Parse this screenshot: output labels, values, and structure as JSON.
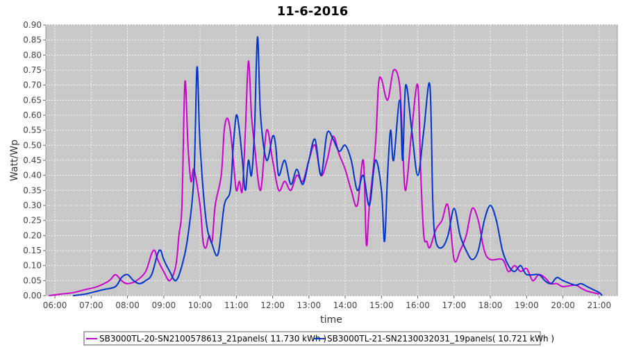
{
  "chart_data": {
    "type": "line",
    "title": "11-6-2016",
    "xlabel": "time",
    "ylabel": "Watt/Wp",
    "xlim": [
      "05:45",
      "21:30"
    ],
    "ylim": [
      0,
      0.9
    ],
    "x_ticks": [
      "06:00",
      "07:00",
      "08:00",
      "09:00",
      "10:00",
      "11:00",
      "12:00",
      "13:00",
      "14:00",
      "15:00",
      "16:00",
      "17:00",
      "18:00",
      "19:00",
      "20:00",
      "21:00"
    ],
    "y_ticks": [
      "0.00",
      "0.05",
      "0.10",
      "0.15",
      "0.20",
      "0.25",
      "0.30",
      "0.35",
      "0.40",
      "0.45",
      "0.50",
      "0.55",
      "0.60",
      "0.65",
      "0.70",
      "0.75",
      "0.80",
      "0.85",
      "0.90"
    ],
    "grid": true,
    "legend_position": "bottom",
    "series": [
      {
        "name": "SB3000TL-20-SN2100578613_21panels( 11.730 kWh )",
        "color": "#cc00cc",
        "points": [
          [
            "05:50",
            0.0
          ],
          [
            "06:10",
            0.005
          ],
          [
            "06:30",
            0.01
          ],
          [
            "06:50",
            0.02
          ],
          [
            "07:10",
            0.03
          ],
          [
            "07:30",
            0.05
          ],
          [
            "07:40",
            0.07
          ],
          [
            "07:50",
            0.05
          ],
          [
            "08:00",
            0.04
          ],
          [
            "08:15",
            0.05
          ],
          [
            "08:30",
            0.08
          ],
          [
            "08:40",
            0.14
          ],
          [
            "08:45",
            0.15
          ],
          [
            "08:50",
            0.12
          ],
          [
            "09:00",
            0.08
          ],
          [
            "09:10",
            0.05
          ],
          [
            "09:20",
            0.1
          ],
          [
            "09:25",
            0.2
          ],
          [
            "09:30",
            0.3
          ],
          [
            "09:35",
            0.71
          ],
          [
            "09:40",
            0.5
          ],
          [
            "09:45",
            0.38
          ],
          [
            "09:50",
            0.42
          ],
          [
            "10:00",
            0.3
          ],
          [
            "10:05",
            0.18
          ],
          [
            "10:10",
            0.16
          ],
          [
            "10:15",
            0.2
          ],
          [
            "10:20",
            0.18
          ],
          [
            "10:25",
            0.3
          ],
          [
            "10:35",
            0.4
          ],
          [
            "10:40",
            0.55
          ],
          [
            "10:45",
            0.59
          ],
          [
            "10:50",
            0.55
          ],
          [
            "10:55",
            0.45
          ],
          [
            "11:00",
            0.35
          ],
          [
            "11:05",
            0.38
          ],
          [
            "11:10",
            0.35
          ],
          [
            "11:15",
            0.55
          ],
          [
            "11:20",
            0.78
          ],
          [
            "11:25",
            0.6
          ],
          [
            "11:30",
            0.5
          ],
          [
            "11:40",
            0.35
          ],
          [
            "11:50",
            0.55
          ],
          [
            "12:00",
            0.45
          ],
          [
            "12:10",
            0.35
          ],
          [
            "12:20",
            0.38
          ],
          [
            "12:30",
            0.35
          ],
          [
            "12:40",
            0.4
          ],
          [
            "12:50",
            0.38
          ],
          [
            "13:00",
            0.45
          ],
          [
            "13:10",
            0.5
          ],
          [
            "13:20",
            0.4
          ],
          [
            "13:30",
            0.45
          ],
          [
            "13:40",
            0.53
          ],
          [
            "13:50",
            0.47
          ],
          [
            "14:00",
            0.42
          ],
          [
            "14:10",
            0.35
          ],
          [
            "14:20",
            0.3
          ],
          [
            "14:30",
            0.45
          ],
          [
            "14:35",
            0.17
          ],
          [
            "14:40",
            0.3
          ],
          [
            "14:50",
            0.5
          ],
          [
            "14:55",
            0.7
          ],
          [
            "15:00",
            0.72
          ],
          [
            "15:10",
            0.65
          ],
          [
            "15:20",
            0.75
          ],
          [
            "15:30",
            0.7
          ],
          [
            "15:35",
            0.5
          ],
          [
            "15:40",
            0.35
          ],
          [
            "15:50",
            0.55
          ],
          [
            "16:00",
            0.7
          ],
          [
            "16:05",
            0.4
          ],
          [
            "16:10",
            0.2
          ],
          [
            "16:15",
            0.18
          ],
          [
            "16:20",
            0.16
          ],
          [
            "16:30",
            0.22
          ],
          [
            "16:40",
            0.25
          ],
          [
            "16:50",
            0.3
          ],
          [
            "17:00",
            0.12
          ],
          [
            "17:10",
            0.15
          ],
          [
            "17:20",
            0.2
          ],
          [
            "17:30",
            0.29
          ],
          [
            "17:40",
            0.25
          ],
          [
            "17:50",
            0.15
          ],
          [
            "18:00",
            0.12
          ],
          [
            "18:20",
            0.12
          ],
          [
            "18:30",
            0.08
          ],
          [
            "18:40",
            0.1
          ],
          [
            "18:50",
            0.08
          ],
          [
            "19:00",
            0.09
          ],
          [
            "19:10",
            0.05
          ],
          [
            "19:20",
            0.07
          ],
          [
            "19:30",
            0.06
          ],
          [
            "19:40",
            0.04
          ],
          [
            "19:50",
            0.04
          ],
          [
            "20:00",
            0.03
          ],
          [
            "20:20",
            0.035
          ],
          [
            "20:30",
            0.025
          ],
          [
            "20:40",
            0.015
          ],
          [
            "20:50",
            0.01
          ],
          [
            "21:00",
            0.005
          ]
        ]
      },
      {
        "name": "SB3000TL-21-SN2130032031_19panels( 10.721 kWh )",
        "color": "#0033cc",
        "points": [
          [
            "06:30",
            0.0
          ],
          [
            "06:50",
            0.005
          ],
          [
            "07:00",
            0.01
          ],
          [
            "07:20",
            0.02
          ],
          [
            "07:40",
            0.03
          ],
          [
            "07:50",
            0.06
          ],
          [
            "08:00",
            0.07
          ],
          [
            "08:10",
            0.05
          ],
          [
            "08:20",
            0.04
          ],
          [
            "08:30",
            0.05
          ],
          [
            "08:40",
            0.07
          ],
          [
            "08:50",
            0.14
          ],
          [
            "08:55",
            0.15
          ],
          [
            "09:00",
            0.12
          ],
          [
            "09:10",
            0.08
          ],
          [
            "09:20",
            0.05
          ],
          [
            "09:30",
            0.1
          ],
          [
            "09:40",
            0.2
          ],
          [
            "09:50",
            0.4
          ],
          [
            "09:55",
            0.76
          ],
          [
            "10:00",
            0.5
          ],
          [
            "10:10",
            0.25
          ],
          [
            "10:20",
            0.17
          ],
          [
            "10:30",
            0.14
          ],
          [
            "10:40",
            0.3
          ],
          [
            "10:50",
            0.35
          ],
          [
            "10:55",
            0.5
          ],
          [
            "11:00",
            0.6
          ],
          [
            "11:05",
            0.55
          ],
          [
            "11:10",
            0.45
          ],
          [
            "11:15",
            0.35
          ],
          [
            "11:20",
            0.45
          ],
          [
            "11:25",
            0.4
          ],
          [
            "11:30",
            0.55
          ],
          [
            "11:35",
            0.86
          ],
          [
            "11:40",
            0.6
          ],
          [
            "11:50",
            0.45
          ],
          [
            "12:00",
            0.53
          ],
          [
            "12:05",
            0.5
          ],
          [
            "12:10",
            0.4
          ],
          [
            "12:20",
            0.45
          ],
          [
            "12:30",
            0.37
          ],
          [
            "12:40",
            0.42
          ],
          [
            "12:50",
            0.37
          ],
          [
            "13:00",
            0.45
          ],
          [
            "13:10",
            0.52
          ],
          [
            "13:20",
            0.4
          ],
          [
            "13:30",
            0.54
          ],
          [
            "13:40",
            0.52
          ],
          [
            "13:50",
            0.48
          ],
          [
            "14:00",
            0.5
          ],
          [
            "14:10",
            0.45
          ],
          [
            "14:20",
            0.35
          ],
          [
            "14:30",
            0.4
          ],
          [
            "14:40",
            0.3
          ],
          [
            "14:50",
            0.45
          ],
          [
            "15:00",
            0.35
          ],
          [
            "15:05",
            0.18
          ],
          [
            "15:10",
            0.4
          ],
          [
            "15:15",
            0.55
          ],
          [
            "15:20",
            0.45
          ],
          [
            "15:30",
            0.65
          ],
          [
            "15:35",
            0.45
          ],
          [
            "15:40",
            0.7
          ],
          [
            "15:50",
            0.55
          ],
          [
            "16:00",
            0.4
          ],
          [
            "16:10",
            0.55
          ],
          [
            "16:20",
            0.7
          ],
          [
            "16:25",
            0.3
          ],
          [
            "16:30",
            0.18
          ],
          [
            "16:40",
            0.16
          ],
          [
            "16:50",
            0.2
          ],
          [
            "17:00",
            0.29
          ],
          [
            "17:10",
            0.2
          ],
          [
            "17:20",
            0.15
          ],
          [
            "17:30",
            0.12
          ],
          [
            "17:40",
            0.15
          ],
          [
            "17:50",
            0.25
          ],
          [
            "18:00",
            0.3
          ],
          [
            "18:10",
            0.25
          ],
          [
            "18:20",
            0.15
          ],
          [
            "18:30",
            0.1
          ],
          [
            "18:40",
            0.08
          ],
          [
            "18:50",
            0.1
          ],
          [
            "19:00",
            0.07
          ],
          [
            "19:20",
            0.07
          ],
          [
            "19:30",
            0.05
          ],
          [
            "19:40",
            0.04
          ],
          [
            "19:50",
            0.06
          ],
          [
            "20:00",
            0.05
          ],
          [
            "20:20",
            0.035
          ],
          [
            "20:30",
            0.04
          ],
          [
            "20:40",
            0.03
          ],
          [
            "20:50",
            0.02
          ],
          [
            "21:00",
            0.01
          ],
          [
            "21:05",
            0.0
          ]
        ]
      }
    ]
  }
}
